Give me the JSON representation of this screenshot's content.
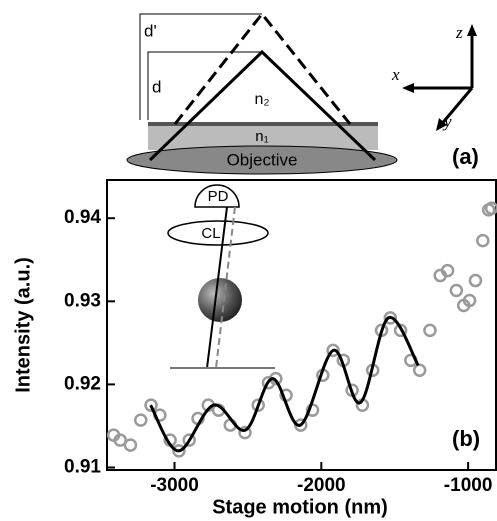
{
  "diagram": {
    "labels": {
      "d_prime": "d'",
      "d": "d",
      "n2": "n₂",
      "n1": "n₁",
      "objective": "Objective",
      "panel": "(a)",
      "z": "z",
      "x": "x",
      "y": "y"
    }
  },
  "chart_data": {
    "type": "line",
    "x_label": "Stage motion  (nm)",
    "y_label": "Intensity  (a.u.)",
    "annotations": {
      "pd": "PD",
      "cl": "CL",
      "panel": "(b)"
    },
    "xlim": [
      -3460,
      -810
    ],
    "xticks": [
      -3000,
      -2000,
      -1000
    ],
    "ylim": [
      0.9097,
      0.9446
    ],
    "yticks": [
      0.91,
      0.92,
      0.93,
      0.94
    ],
    "series": [
      {
        "type": "scatter",
        "color": "#9a9a9a",
        "x": [
          -3415,
          -3370,
          -3300,
          -3230,
          -3160,
          -3100,
          -3030,
          -2970,
          -2900,
          -2840,
          -2770,
          -2700,
          -2620,
          -2520,
          -2430,
          -2360,
          -2310,
          -2240,
          -2140,
          -2060,
          -1990,
          -1920,
          -1850,
          -1790,
          -1720,
          -1650,
          -1590,
          -1530,
          -1460,
          -1390,
          -1330,
          -1260,
          -1190,
          -1140,
          -1080,
          -1030,
          -990,
          -950,
          -900,
          -860,
          -840
        ],
        "values": [
          0.9139,
          0.9133,
          0.9127,
          0.9157,
          0.9175,
          0.9163,
          0.9133,
          0.912,
          0.9133,
          0.9159,
          0.9175,
          0.9169,
          0.9151,
          0.9142,
          0.9175,
          0.9202,
          0.9207,
          0.9187,
          0.9151,
          0.9169,
          0.9211,
          0.9241,
          0.9229,
          0.9193,
          0.9175,
          0.9217,
          0.9265,
          0.928,
          0.9265,
          0.9229,
          0.9217,
          0.9265,
          0.9331,
          0.9337,
          0.9313,
          0.9295,
          0.9301,
          0.9325,
          0.9373,
          0.941,
          0.9412
        ]
      },
      {
        "type": "line",
        "color": "#000000",
        "x": [
          -3163,
          -2973,
          -2735,
          -2517,
          -2333,
          -2143,
          -1918,
          -1735,
          -1544,
          -1340
        ],
        "values": [
          0.9175,
          0.912,
          0.9175,
          0.9145,
          0.9207,
          0.9151,
          0.9241,
          0.9178,
          0.928,
          0.9223
        ]
      }
    ]
  }
}
